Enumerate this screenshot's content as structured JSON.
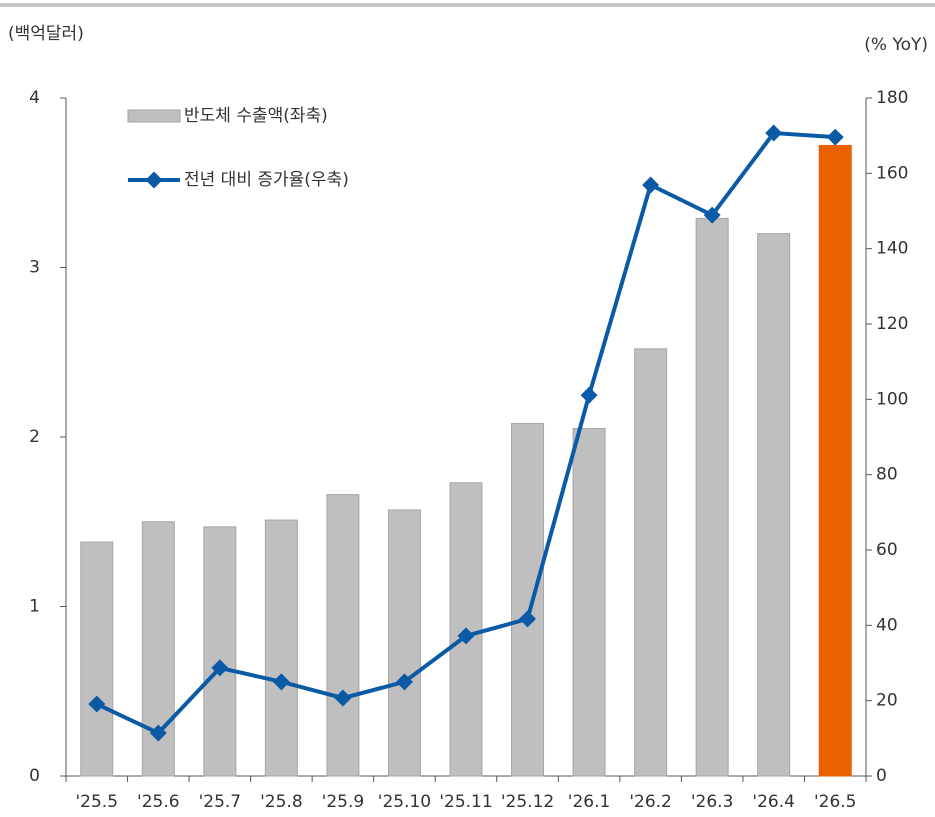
{
  "chart_data": {
    "type": "combo",
    "y_label": "(백억달러)",
    "y2_label": "(% YoY)",
    "categories": [
      "'25.5",
      "'25.6",
      "'25.7",
      "'25.8",
      "'25.9",
      "'25.10",
      "'25.11",
      "'25.12",
      "'26.1",
      "'26.2",
      "'26.3",
      "'26.4",
      "'26.5"
    ],
    "series": [
      {
        "name": "반도체 수출액(좌축)",
        "type": "bar",
        "color": "#bfbfbf",
        "colors": [
          "#bfbfbf",
          "#bfbfbf",
          "#bfbfbf",
          "#bfbfbf",
          "#bfbfbf",
          "#bfbfbf",
          "#bfbfbf",
          "#bfbfbf",
          "#bfbfbf",
          "#bfbfbf",
          "#bfbfbf",
          "#bfbfbf",
          "#eb6100"
        ],
        "values": [
          1.38,
          1.5,
          1.47,
          1.51,
          1.66,
          1.57,
          1.73,
          2.08,
          2.05,
          2.52,
          3.29,
          3.2,
          3.72
        ]
      },
      {
        "name": "전년 대비 증가율(우축)",
        "type": "line",
        "axis": "y2",
        "color": "#0b5aa5",
        "values": [
          19.1,
          11.4,
          28.7,
          25.0,
          20.7,
          25.0,
          37.2,
          41.7,
          101.1,
          156.9,
          148.9,
          170.7,
          169.6
        ]
      }
    ],
    "ylim": [
      0,
      4
    ],
    "yticks": [
      0,
      1,
      2,
      3,
      4
    ],
    "y2lim": [
      0,
      180
    ],
    "y2ticks": [
      0,
      20,
      40,
      60,
      80,
      100,
      120,
      140,
      160,
      180
    ],
    "grid": false,
    "legend": "top-left"
  }
}
